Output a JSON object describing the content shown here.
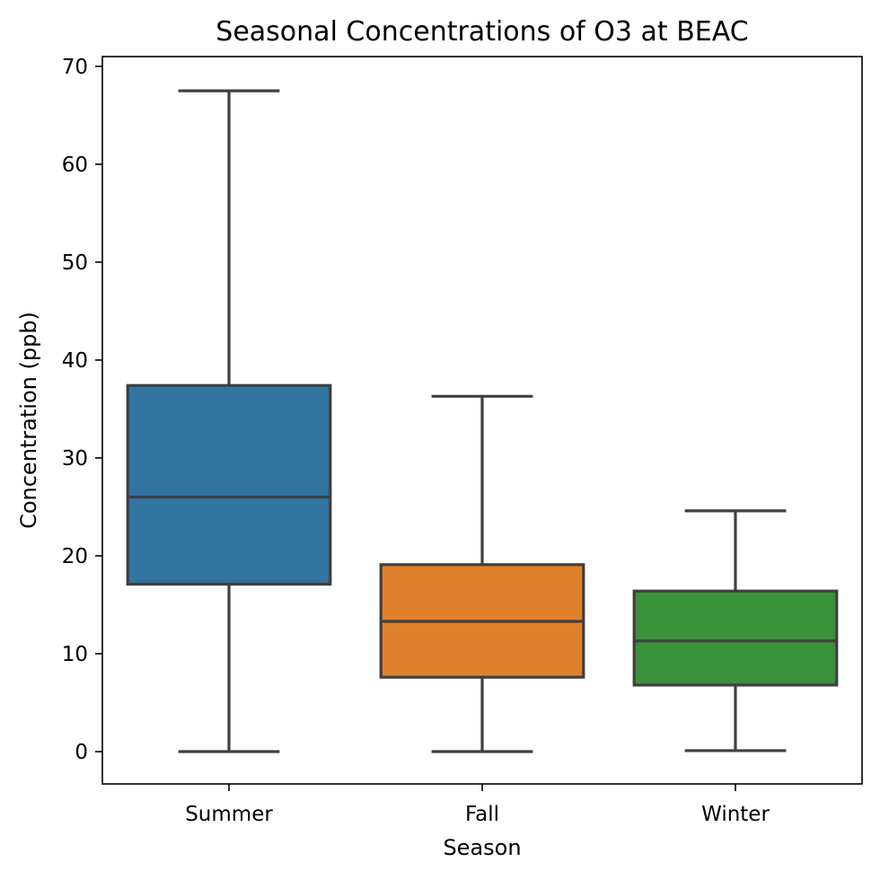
{
  "chart_data": {
    "type": "box",
    "title": "Seasonal Concentrations of O3 at BEAC",
    "xlabel": "Season",
    "ylabel": "Concentration (ppb)",
    "ylim": [
      -3.3,
      71
    ],
    "yticks": [
      0,
      10,
      20,
      30,
      40,
      50,
      60,
      70
    ],
    "grid": false,
    "categories": [
      "Summer",
      "Fall",
      "Winter"
    ],
    "boxes": [
      {
        "category": "Summer",
        "whisker_low": 0.0,
        "q1": 17.1,
        "median": 26.0,
        "q3": 37.4,
        "whisker_high": 67.5,
        "color": "#3274a1"
      },
      {
        "category": "Fall",
        "whisker_low": 0.0,
        "q1": 7.6,
        "median": 13.3,
        "q3": 19.1,
        "whisker_high": 36.3,
        "color": "#e1812c"
      },
      {
        "category": "Winter",
        "whisker_low": 0.1,
        "q1": 6.8,
        "median": 11.3,
        "q3": 16.4,
        "whisker_high": 24.6,
        "color": "#3a923a"
      }
    ],
    "line_color": "#3f3f3f"
  }
}
